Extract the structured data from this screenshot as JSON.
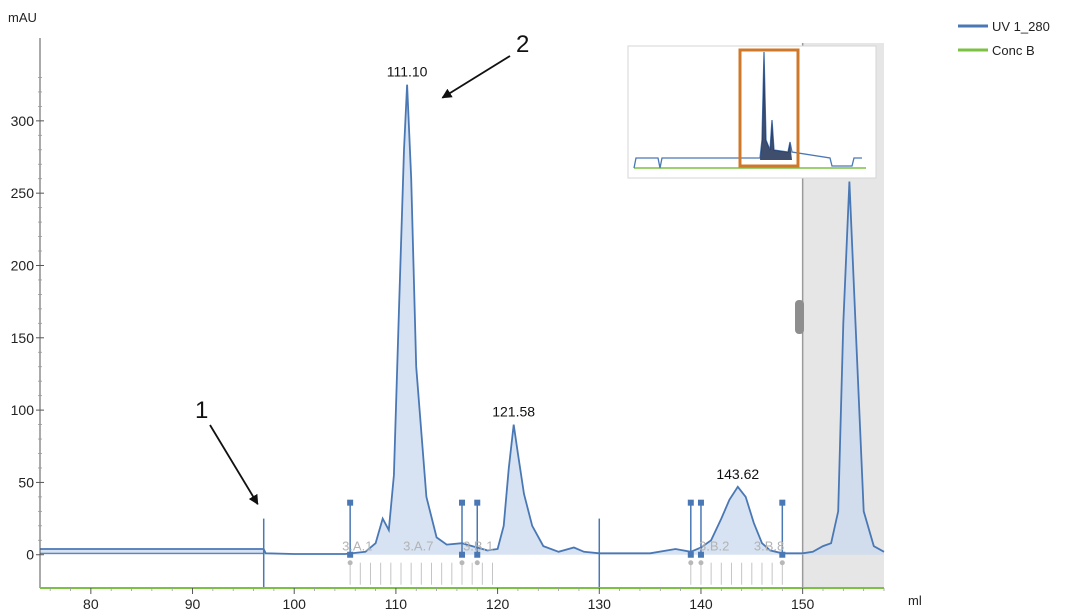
{
  "chart_data": {
    "type": "line",
    "title": "",
    "xlabel": "ml",
    "ylabel": "mAU",
    "xlim": [
      75,
      158
    ],
    "ylim": [
      -23,
      340
    ],
    "xticks": [
      80,
      90,
      100,
      110,
      120,
      130,
      140,
      150
    ],
    "yticks": [
      0,
      50,
      100,
      150,
      200,
      250,
      300
    ],
    "grid": false,
    "legend": {
      "placement": "top-right"
    },
    "series": [
      {
        "name": "UV 1_280",
        "color": "#4a78b5",
        "x": [
          75,
          97,
          97.2,
          100,
          105,
          107,
          108,
          108.7,
          109.3,
          109.8,
          110.3,
          110.8,
          111.1,
          111.5,
          112,
          113,
          114,
          115,
          116.5,
          117.5,
          119,
          120,
          120.6,
          121.1,
          121.58,
          122,
          122.6,
          123.4,
          124.5,
          126,
          127.5,
          128.5,
          130,
          135,
          137.5,
          139,
          140,
          141,
          142,
          142.8,
          143.62,
          144.4,
          145.2,
          146,
          146.8,
          148,
          150,
          151,
          152,
          152.8,
          153.5,
          154,
          154.6,
          155.2,
          156,
          157,
          158
        ],
        "y": [
          4,
          4,
          1,
          0.5,
          0.5,
          2,
          8,
          25,
          17,
          55,
          170,
          280,
          325,
          260,
          130,
          40,
          12,
          7,
          8,
          6,
          3,
          4,
          20,
          60,
          90,
          70,
          42,
          20,
          6,
          2,
          5,
          2,
          1,
          1,
          4,
          2,
          5,
          10,
          25,
          38,
          47,
          40,
          22,
          8,
          3,
          1,
          1,
          2,
          6,
          8,
          30,
          160,
          258,
          160,
          30,
          6,
          2
        ]
      },
      {
        "name": "Conc B",
        "color": "#7cc242",
        "x": [
          75,
          158
        ],
        "y": [
          -23,
          -23
        ]
      }
    ],
    "peak_labels": [
      {
        "text": "111.10",
        "x": 111.1,
        "y": 325
      },
      {
        "text": "121.58",
        "x": 121.58,
        "y": 90
      },
      {
        "text": "143.62",
        "x": 143.62,
        "y": 47
      }
    ],
    "annotations": [
      {
        "text": "1",
        "target_x": 97,
        "target_y": 35
      },
      {
        "text": "2",
        "target_x": 113,
        "target_y": 316
      }
    ],
    "fraction_labels": [
      {
        "text": "3.A.1",
        "x": 106.2
      },
      {
        "text": "3.A.7",
        "x": 112.2
      },
      {
        "text": "3.B.1",
        "x": 118.1
      },
      {
        "text": "3.B.2",
        "x": 141.3
      },
      {
        "text": "3.B.8",
        "x": 146.7
      }
    ],
    "fraction_markers": [
      105.5,
      116.5,
      118,
      139,
      140,
      148
    ],
    "fraction_ticks": [
      105.5,
      106.5,
      107.5,
      108.5,
      109.5,
      110.5,
      111.5,
      112.5,
      113.5,
      114.5,
      115.5,
      116.5,
      117.5,
      118.5,
      119.5,
      139,
      140,
      141,
      142,
      143,
      144,
      145,
      146,
      147,
      148
    ],
    "event_lines": [
      97,
      130
    ],
    "shaded_region": {
      "from": 150,
      "to": 158
    }
  }
}
